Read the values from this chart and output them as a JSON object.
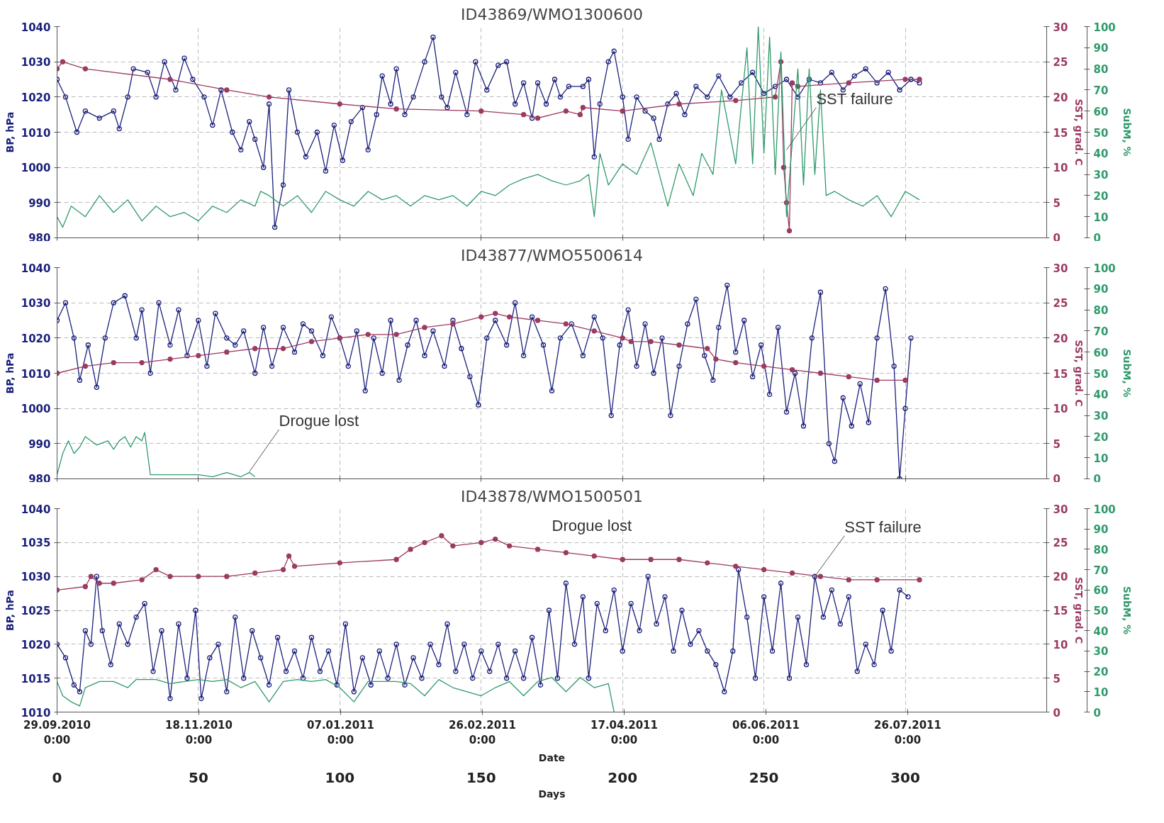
{
  "chart_data": [
    {
      "type": "line",
      "title": "ID43869/WMO1300600",
      "ylabel": "BP, hPa",
      "y2label": "SST, grad. C",
      "y3label": "SubM, %",
      "xlim": [
        0,
        350
      ],
      "xticks": [
        0,
        50,
        100,
        150,
        200,
        250,
        300
      ],
      "ylim": [
        980,
        1040
      ],
      "yticks": [
        980,
        990,
        1000,
        1010,
        1020,
        1030,
        1040
      ],
      "y2lim": [
        0,
        30
      ],
      "y2ticks": [
        0,
        5,
        10,
        15,
        20,
        25,
        30
      ],
      "y3lim": [
        0,
        100
      ],
      "y3ticks": [
        0,
        10,
        20,
        30,
        40,
        50,
        60,
        70,
        80,
        90,
        100
      ],
      "grid": true,
      "tick_labels": "y",
      "annotations": [
        {
          "text": "SST failure",
          "x": 258,
          "y": 1005
        }
      ],
      "series": [
        {
          "color": "#1a1f7a",
          "marker": "circle",
          "x": [
            0,
            3,
            7,
            10,
            15,
            20,
            22,
            25,
            27,
            32,
            35,
            38,
            42,
            45,
            48,
            52,
            55,
            58,
            62,
            65,
            68,
            70,
            73,
            75,
            77,
            80,
            82,
            85,
            88,
            92,
            95,
            98,
            101,
            104,
            108,
            110,
            113,
            115,
            118,
            120,
            123,
            126,
            130,
            133,
            136,
            138,
            141,
            145,
            148,
            152,
            156,
            159,
            162,
            165,
            168,
            170,
            173,
            176,
            178,
            181,
            186,
            188,
            190,
            192,
            195,
            197,
            200,
            202,
            205,
            208,
            211,
            213,
            216,
            219,
            222,
            226,
            230,
            234,
            238,
            242,
            246,
            250,
            254,
            258,
            262,
            266,
            270,
            274,
            278,
            282,
            286,
            290,
            294,
            298,
            302,
            305
          ],
          "values": [
            1025,
            1020,
            1010,
            1016,
            1014,
            1016,
            1011,
            1020,
            1028,
            1027,
            1020,
            1030,
            1022,
            1031,
            1025,
            1020,
            1012,
            1022,
            1010,
            1005,
            1013,
            1008,
            1000,
            1018,
            983,
            995,
            1022,
            1010,
            1003,
            1010,
            999,
            1012,
            1002,
            1013,
            1017,
            1005,
            1015,
            1026,
            1018,
            1028,
            1015,
            1020,
            1030,
            1037,
            1020,
            1017,
            1027,
            1015,
            1030,
            1022,
            1029,
            1030,
            1018,
            1024,
            1014,
            1024,
            1018,
            1025,
            1020,
            1023,
            1023,
            1025,
            1003,
            1018,
            1030,
            1033,
            1020,
            1008,
            1020,
            1016,
            1014,
            1008,
            1018,
            1021,
            1015,
            1023,
            1020,
            1026,
            1020,
            1024,
            1027,
            1021,
            1023,
            1025,
            1020,
            1025,
            1024,
            1027,
            1022,
            1026,
            1028,
            1024,
            1027,
            1022,
            1025,
            1024
          ]
        },
        {
          "color": "#9b3a62",
          "marker": "circle",
          "axis": "y2",
          "x": [
            0,
            2,
            10,
            40,
            60,
            75,
            100,
            120,
            150,
            165,
            170,
            180,
            185,
            186,
            200,
            220,
            240,
            254,
            256,
            257,
            258,
            259,
            260,
            262,
            280,
            300,
            305
          ],
          "values": [
            24,
            25,
            24,
            22.5,
            21,
            20,
            19,
            18.3,
            18,
            17.5,
            17,
            18,
            17.5,
            18.5,
            18,
            19,
            19.5,
            20,
            25,
            10,
            5,
            1,
            22,
            21.5,
            22,
            22.5,
            22.5
          ]
        },
        {
          "color": "#2e9a6a",
          "marker": "none",
          "axis": "y3",
          "x": [
            0,
            2,
            5,
            10,
            15,
            20,
            25,
            30,
            35,
            40,
            45,
            50,
            55,
            60,
            65,
            70,
            72,
            75,
            80,
            85,
            90,
            95,
            100,
            105,
            110,
            115,
            120,
            125,
            130,
            135,
            140,
            145,
            150,
            155,
            160,
            165,
            170,
            175,
            180,
            185,
            188,
            190,
            192,
            195,
            200,
            205,
            210,
            213,
            216,
            220,
            225,
            228,
            232,
            235,
            240,
            244,
            246,
            248,
            250,
            252,
            254,
            256,
            258,
            260,
            262,
            264,
            266,
            268,
            270,
            272,
            275,
            280,
            285,
            290,
            295,
            300,
            305
          ],
          "values": [
            10,
            5,
            15,
            10,
            20,
            12,
            18,
            8,
            15,
            10,
            12,
            8,
            15,
            12,
            18,
            15,
            22,
            20,
            15,
            20,
            12,
            22,
            18,
            15,
            22,
            18,
            20,
            15,
            20,
            18,
            20,
            15,
            22,
            20,
            25,
            28,
            30,
            27,
            25,
            27,
            30,
            10,
            40,
            25,
            35,
            30,
            45,
            30,
            15,
            35,
            20,
            40,
            30,
            70,
            35,
            90,
            35,
            100,
            40,
            95,
            30,
            88,
            10,
            45,
            80,
            25,
            80,
            30,
            70,
            20,
            22,
            18,
            15,
            20,
            10,
            22,
            18
          ]
        }
      ]
    },
    {
      "type": "line",
      "title": "ID43877/WMO5500614",
      "ylabel": "BP, hPa",
      "y2label": "SST, grad. C",
      "y3label": "SubM, %",
      "xlim": [
        0,
        350
      ],
      "xticks": [
        0,
        50,
        100,
        150,
        200,
        250,
        300
      ],
      "ylim": [
        980,
        1040
      ],
      "yticks": [
        980,
        990,
        1000,
        1010,
        1020,
        1030,
        1040
      ],
      "y2lim": [
        0,
        30
      ],
      "y2ticks": [
        0,
        5,
        10,
        15,
        20,
        25,
        30
      ],
      "y3lim": [
        0,
        100
      ],
      "y3ticks": [
        0,
        10,
        20,
        30,
        40,
        50,
        60,
        70,
        80,
        90,
        100
      ],
      "grid": true,
      "tick_labels": "y",
      "annotations": [
        {
          "text": "Drogue lost",
          "x": 68,
          "y": 982
        }
      ],
      "series": [
        {
          "color": "#1a1f7a",
          "marker": "circle",
          "x": [
            0,
            3,
            6,
            8,
            11,
            14,
            17,
            20,
            24,
            28,
            30,
            33,
            36,
            40,
            43,
            46,
            50,
            53,
            56,
            60,
            63,
            66,
            70,
            73,
            76,
            80,
            84,
            87,
            90,
            94,
            97,
            100,
            103,
            106,
            109,
            112,
            115,
            118,
            121,
            124,
            127,
            130,
            133,
            137,
            140,
            143,
            146,
            149,
            152,
            155,
            159,
            162,
            165,
            168,
            172,
            175,
            178,
            182,
            186,
            190,
            193,
            196,
            199,
            202,
            205,
            208,
            211,
            214,
            217,
            220,
            223,
            226,
            229,
            232,
            234,
            237,
            240,
            243,
            246,
            249,
            252,
            255,
            258,
            261,
            264,
            267,
            270,
            273,
            275,
            278,
            281,
            284,
            287,
            290,
            293,
            296,
            298,
            300,
            302
          ],
          "values": [
            1025,
            1030,
            1020,
            1008,
            1018,
            1006,
            1020,
            1030,
            1032,
            1020,
            1028,
            1010,
            1030,
            1018,
            1028,
            1015,
            1025,
            1012,
            1027,
            1020,
            1018,
            1022,
            1010,
            1023,
            1012,
            1023,
            1016,
            1024,
            1022,
            1015,
            1026,
            1020,
            1012,
            1022,
            1005,
            1020,
            1010,
            1025,
            1008,
            1018,
            1025,
            1015,
            1022,
            1012,
            1025,
            1017,
            1009,
            1001,
            1020,
            1025,
            1018,
            1030,
            1015,
            1026,
            1018,
            1005,
            1020,
            1024,
            1015,
            1026,
            1020,
            998,
            1018,
            1028,
            1012,
            1024,
            1010,
            1020,
            998,
            1012,
            1024,
            1031,
            1015,
            1008,
            1023,
            1035,
            1016,
            1025,
            1009,
            1018,
            1004,
            1023,
            999,
            1010,
            995,
            1020,
            1033,
            990,
            985,
            1003,
            995,
            1007,
            996,
            1020,
            1034,
            1012,
            980,
            1000,
            1020
          ]
        },
        {
          "color": "#9b3a62",
          "marker": "circle",
          "axis": "y2",
          "x": [
            0,
            10,
            20,
            30,
            40,
            50,
            60,
            70,
            80,
            90,
            100,
            110,
            120,
            130,
            140,
            150,
            155,
            160,
            170,
            180,
            190,
            200,
            203,
            210,
            220,
            230,
            233,
            240,
            250,
            260,
            270,
            280,
            290,
            300
          ],
          "values": [
            15,
            16,
            16.5,
            16.5,
            17,
            17.5,
            18,
            18.5,
            18.5,
            19.5,
            20,
            20.5,
            20.5,
            21.5,
            22,
            23,
            23.5,
            23,
            22.5,
            22,
            21,
            20,
            19.5,
            19.5,
            19,
            18.5,
            17,
            16.5,
            16,
            15.5,
            15,
            14.5,
            14,
            14
          ]
        },
        {
          "color": "#2e9a6a",
          "marker": "none",
          "axis": "y3",
          "x": [
            0,
            2,
            4,
            6,
            8,
            10,
            14,
            18,
            20,
            22,
            24,
            26,
            28,
            30,
            31,
            32,
            33,
            40,
            50,
            55,
            60,
            65,
            68,
            70
          ],
          "values": [
            2,
            12,
            18,
            12,
            15,
            20,
            16,
            18,
            14,
            18,
            20,
            15,
            20,
            18,
            22,
            12,
            2,
            2,
            2,
            1,
            3,
            1,
            3,
            1
          ]
        }
      ]
    },
    {
      "type": "line",
      "title": "ID43878/WMO1500501",
      "ylabel": "BP, hPa",
      "y2label": "SST, grad. C",
      "y3label": "SubM, %",
      "xlabel": "Days",
      "x2label": "Date",
      "xlim": [
        0,
        350
      ],
      "x2lim": [
        "2010-09-29",
        "2011-09-13"
      ],
      "x2ticks": [
        {
          "value": "2010-09-29",
          "label": "29.09.2010\n0:00"
        },
        {
          "value": "2010-11-18",
          "label": "18.11.2010\n0:00"
        },
        {
          "value": "2011-01-07",
          "label": "07.01.2011\n0:00"
        },
        {
          "value": "2011-02-26",
          "label": "26.02.2011\n0:00"
        },
        {
          "value": "2011-04-17",
          "label": "17.04.2011\n0:00"
        },
        {
          "value": "2011-06-06",
          "label": "06.06.2011\n0:00"
        },
        {
          "value": "2011-07-26",
          "label": "26.07.2011\n0:00"
        }
      ],
      "xticks": [
        0,
        50,
        100,
        150,
        200,
        250,
        300
      ],
      "ylim": [
        1010,
        1040
      ],
      "yticks": [
        1010,
        1015,
        1020,
        1025,
        1030,
        1035,
        1040
      ],
      "y2lim": [
        0,
        30
      ],
      "y2ticks": [
        0,
        5,
        10,
        15,
        20,
        25,
        30
      ],
      "y3lim": [
        0,
        100
      ],
      "y3ticks": [
        0,
        10,
        20,
        30,
        40,
        50,
        60,
        70,
        80,
        90,
        100
      ],
      "grid": true,
      "annotations": [
        "Drogue lost",
        {
          "text": "SST failure",
          "x": 268,
          "y": 1030
        }
      ],
      "series": [
        {
          "color": "#1a1f7a",
          "marker": "circle",
          "x": [
            0,
            3,
            6,
            8,
            10,
            12,
            14,
            16,
            19,
            22,
            25,
            28,
            31,
            34,
            37,
            40,
            43,
            46,
            49,
            51,
            54,
            57,
            60,
            63,
            66,
            69,
            72,
            75,
            78,
            81,
            84,
            87,
            90,
            93,
            96,
            99,
            102,
            105,
            108,
            111,
            114,
            117,
            120,
            123,
            126,
            129,
            132,
            135,
            138,
            141,
            144,
            147,
            150,
            153,
            156,
            159,
            162,
            165,
            168,
            171,
            174,
            177,
            180,
            183,
            186,
            188,
            191,
            194,
            197,
            200,
            203,
            206,
            209,
            212,
            215,
            218,
            221,
            224,
            227,
            230,
            233,
            236,
            239,
            241,
            244,
            247,
            250,
            253,
            256,
            259,
            262,
            265,
            268,
            271,
            274,
            277,
            280,
            283,
            286,
            289,
            292,
            295,
            298,
            301
          ],
          "values": [
            1020,
            1018,
            1014,
            1013,
            1022,
            1020,
            1030,
            1022,
            1017,
            1023,
            1020,
            1024,
            1026,
            1016,
            1022,
            1012,
            1023,
            1015,
            1025,
            1012,
            1018,
            1020,
            1013,
            1024,
            1015,
            1022,
            1018,
            1014,
            1021,
            1016,
            1019,
            1015,
            1021,
            1016,
            1019,
            1014,
            1023,
            1013,
            1018,
            1014,
            1019,
            1015,
            1020,
            1014,
            1018,
            1015,
            1020,
            1017,
            1023,
            1016,
            1020,
            1015,
            1019,
            1016,
            1020,
            1015,
            1019,
            1015,
            1021,
            1014,
            1025,
            1015,
            1029,
            1020,
            1027,
            1015,
            1026,
            1022,
            1028,
            1019,
            1026,
            1022,
            1030,
            1023,
            1027,
            1019,
            1025,
            1020,
            1022,
            1019,
            1017,
            1013,
            1019,
            1031,
            1024,
            1015,
            1027,
            1019,
            1029,
            1015,
            1024,
            1017,
            1030,
            1024,
            1028,
            1023,
            1027,
            1016,
            1020,
            1017,
            1025,
            1019,
            1028,
            1027
          ]
        },
        {
          "color": "#9b3a62",
          "marker": "circle",
          "axis": "y2",
          "x": [
            0,
            10,
            12,
            15,
            20,
            30,
            35,
            40,
            50,
            60,
            70,
            80,
            82,
            84,
            100,
            120,
            125,
            130,
            136,
            140,
            150,
            155,
            160,
            170,
            180,
            190,
            200,
            210,
            220,
            230,
            240,
            250,
            260,
            270,
            280,
            290,
            305
          ],
          "values": [
            18,
            18.5,
            20,
            19,
            19,
            19.5,
            21,
            20,
            20,
            20,
            20.5,
            21,
            23,
            21.5,
            22,
            22.5,
            24,
            25,
            26,
            24.5,
            25,
            25.5,
            24.5,
            24,
            23.5,
            23,
            22.5,
            22.5,
            22.5,
            22,
            21.5,
            21,
            20.5,
            20,
            19.5,
            19.5,
            19.5
          ]
        },
        {
          "color": "#2e9a6a",
          "marker": "none",
          "axis": "y3",
          "x": [
            0,
            2,
            5,
            8,
            10,
            15,
            20,
            25,
            28,
            35,
            40,
            50,
            55,
            60,
            65,
            70,
            75,
            80,
            85,
            90,
            95,
            100,
            105,
            110,
            115,
            120,
            125,
            130,
            135,
            140,
            145,
            150,
            155,
            160,
            165,
            170,
            175,
            180,
            185,
            190,
            195,
            197
          ],
          "values": [
            15,
            8,
            5,
            3,
            12,
            15,
            15,
            12,
            16,
            16,
            14,
            16,
            15,
            16,
            12,
            15,
            5,
            15,
            16,
            15,
            16,
            12,
            5,
            15,
            15,
            15,
            14,
            8,
            16,
            12,
            10,
            8,
            12,
            15,
            8,
            15,
            17,
            10,
            17,
            12,
            14,
            0
          ]
        }
      ]
    }
  ]
}
